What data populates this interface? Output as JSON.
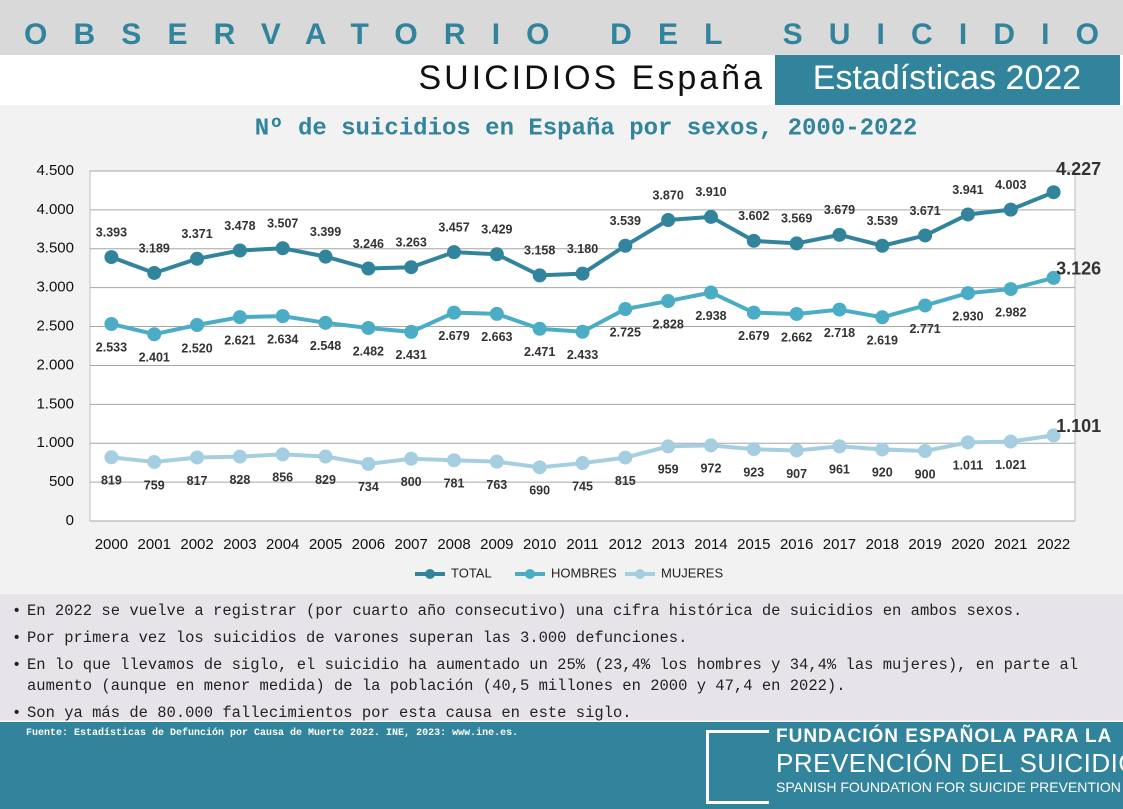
{
  "header": {
    "banner": "OBSERVATORIO DEL SUICIDIO",
    "subtitle": "SUICIDIOS España",
    "badge": "Estadísticas 2022"
  },
  "chart_data": {
    "type": "line",
    "title": "Nº de suicidios en España por sexos, 2000-2022",
    "categories": [
      "2000",
      "2001",
      "2002",
      "2003",
      "2004",
      "2005",
      "2006",
      "2007",
      "2008",
      "2009",
      "2010",
      "2011",
      "2012",
      "2013",
      "2014",
      "2015",
      "2016",
      "2017",
      "2018",
      "2019",
      "2020",
      "2021",
      "2022"
    ],
    "series": [
      {
        "name": "TOTAL",
        "color": "#31849b",
        "values": [
          3393,
          3189,
          3371,
          3478,
          3507,
          3399,
          3246,
          3263,
          3457,
          3429,
          3158,
          3180,
          3539,
          3870,
          3910,
          3602,
          3569,
          3679,
          3539,
          3671,
          3941,
          4003,
          4227
        ],
        "value_labels": [
          "3.393",
          "3.189",
          "3.371",
          "3.478",
          "3.507",
          "3.399",
          "3.246",
          "3.263",
          "3.457",
          "3.429",
          "3.158",
          "3.180",
          "3.539",
          "3.870",
          "3.910",
          "3.602",
          "3.569",
          "3.679",
          "3.539",
          "3.671",
          "3.941",
          "4.003",
          "4.227"
        ]
      },
      {
        "name": "HOMBRES",
        "color": "#4bacc6",
        "values": [
          2533,
          2401,
          2520,
          2621,
          2634,
          2548,
          2482,
          2431,
          2679,
          2663,
          2471,
          2433,
          2725,
          2828,
          2938,
          2679,
          2662,
          2718,
          2619,
          2771,
          2930,
          2982,
          3126
        ],
        "value_labels": [
          "2.533",
          "2.401",
          "2.520",
          "2.621",
          "2.634",
          "2.548",
          "2.482",
          "2.431",
          "2.679",
          "2.663",
          "2.471",
          "2.433",
          "2.725",
          "2.828",
          "2.938",
          "2.679",
          "2.662",
          "2.718",
          "2.619",
          "2.771",
          "2.930",
          "2.982",
          "3.126"
        ]
      },
      {
        "name": "MUJERES",
        "color": "#a5cfe0",
        "values": [
          819,
          759,
          817,
          828,
          856,
          829,
          734,
          800,
          781,
          763,
          690,
          745,
          815,
          959,
          972,
          923,
          907,
          961,
          920,
          900,
          1011,
          1021,
          1101
        ],
        "value_labels": [
          "819",
          "759",
          "817",
          "828",
          "856",
          "829",
          "734",
          "800",
          "781",
          "763",
          "690",
          "745",
          "815",
          "959",
          "972",
          "923",
          "907",
          "961",
          "920",
          "900",
          "1.011",
          "1.021",
          "1.101"
        ]
      }
    ],
    "ylim": [
      0,
      4500
    ],
    "yticks": [
      0,
      500,
      {
        "value": 1000,
        "label": "1.000"
      },
      {
        "value": 1500,
        "label": "1.500"
      },
      {
        "value": 2000,
        "label": "2.000"
      },
      {
        "value": 2500,
        "label": "2.500"
      },
      {
        "value": 3000,
        "label": "3.000"
      },
      {
        "value": 3500,
        "label": "3.500"
      },
      {
        "value": 4000,
        "label": "4.000"
      },
      {
        "value": 4500,
        "label": "4.500"
      }
    ],
    "grid": true,
    "legend": "bottom"
  },
  "notes": [
    "En 2022 se vuelve a registrar (por cuarto año consecutivo) una cifra histórica de suicidios en ambos sexos.",
    "Por primera vez los suicidios de varones superan las 3.000 defunciones.",
    "En lo que llevamos de siglo, el suicidio ha aumentado un 25% (23,4% los hombres y 34,4% las mujeres), en parte al aumento (aunque en menor medida) de la población (40,5 millones en 2000 y 47,4 en 2022).",
    "Son ya más de 80.000 fallecimientos por esta causa en este siglo."
  ],
  "footer": {
    "source": "Fuente: Estadísticas de Defunción por Causa de Muerte 2022. INE, 2023: www.ine.es.",
    "logo": [
      "FUNDACIÓN ESPAÑOLA PARA LA",
      "PREVENCIÓN DEL SUICIDIO",
      "SPANISH FOUNDATION FOR SUICIDE PREVENTION"
    ]
  }
}
